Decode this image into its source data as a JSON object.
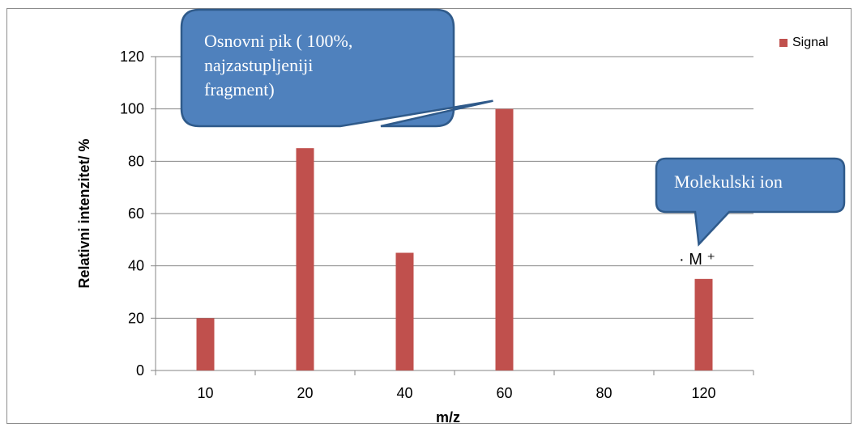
{
  "chart_data": {
    "type": "bar",
    "categories": [
      "10",
      "20",
      "40",
      "60",
      "80",
      "120"
    ],
    "series": [
      {
        "name": "Signal",
        "values": [
          20,
          85,
          45,
          100,
          0,
          35
        ],
        "color": "#c0504d"
      }
    ],
    "title": "",
    "xlabel": "m/z",
    "ylabel": "Relativni intenzitet/ %",
    "ylim": [
      0,
      120
    ],
    "yticks": [
      0,
      20,
      40,
      60,
      80,
      100,
      120
    ],
    "grid": true,
    "legend_position": "top-right",
    "annotations": [
      {
        "text": "Osnovni pik ( 100%,\nnajzastupljeniji\nfragment)",
        "target_category": "60",
        "color": "#4f81bd"
      },
      {
        "text": "Molekulski ion",
        "target_category": "120",
        "color": "#4f81bd"
      },
      {
        "text": "· M ⁺",
        "target_category": "120"
      }
    ]
  }
}
